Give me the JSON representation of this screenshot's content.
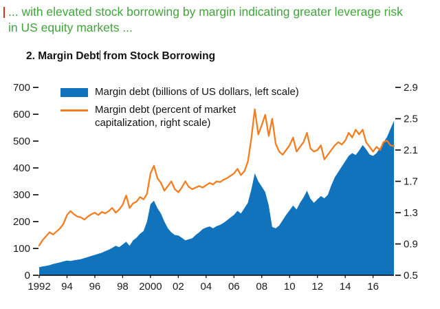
{
  "page": {
    "caption": "... with elevated stock borrowing by margin indicating greater leverage risk in US equity markets ...",
    "heading_part1": "2. Margin Debt",
    "heading_part2": "from Stock Borrowing"
  },
  "colors": {
    "caption_green": "#3fa53a",
    "area_blue": "#1173bc",
    "line_orange": "#f47d20",
    "axis_black": "#000000",
    "red_marker": "#e02b20"
  },
  "chart_data": {
    "type": "area",
    "title": "2. Margin Debt from Stock Borrowing",
    "xlabel": "",
    "ylabel_left": "Margin debt (billions of US dollars)",
    "ylabel_right": "Margin debt (percent of market capitalization)",
    "x_unit": "year",
    "x_start": 1992,
    "x_step": 0.25,
    "x_end": 2017.5,
    "grid": false,
    "legend_position": "top-left-inside",
    "series": [
      {
        "name": "Margin debt (billions of US dollars, left scale)",
        "type": "area",
        "axis": "left",
        "color": "#1173bc",
        "values": [
          30,
          33,
          35,
          38,
          42,
          45,
          48,
          52,
          55,
          53,
          56,
          58,
          60,
          64,
          68,
          72,
          76,
          80,
          84,
          90,
          95,
          102,
          110,
          105,
          115,
          125,
          110,
          130,
          140,
          155,
          165,
          200,
          265,
          278,
          250,
          230,
          200,
          175,
          160,
          150,
          148,
          140,
          130,
          134,
          138,
          150,
          160,
          172,
          178,
          182,
          175,
          183,
          188,
          195,
          205,
          215,
          225,
          240,
          230,
          250,
          270,
          320,
          380,
          350,
          330,
          310,
          260,
          180,
          175,
          185,
          205,
          225,
          242,
          260,
          245,
          270,
          290,
          315,
          285,
          270,
          283,
          295,
          287,
          300,
          335,
          365,
          385,
          405,
          425,
          445,
          455,
          448,
          465,
          485,
          470,
          450,
          445,
          455,
          475,
          495,
          515,
          545,
          575
        ]
      },
      {
        "name": "Margin debt (percent of market capitalization, right scale)",
        "type": "line",
        "axis": "right",
        "color": "#f47d20",
        "values": [
          0.88,
          0.95,
          1.0,
          1.05,
          1.02,
          1.06,
          1.1,
          1.16,
          1.27,
          1.32,
          1.28,
          1.25,
          1.24,
          1.21,
          1.25,
          1.28,
          1.3,
          1.27,
          1.31,
          1.29,
          1.32,
          1.36,
          1.3,
          1.34,
          1.4,
          1.52,
          1.36,
          1.42,
          1.44,
          1.5,
          1.47,
          1.54,
          1.8,
          1.9,
          1.74,
          1.68,
          1.58,
          1.64,
          1.7,
          1.6,
          1.56,
          1.62,
          1.7,
          1.63,
          1.6,
          1.62,
          1.64,
          1.62,
          1.65,
          1.68,
          1.66,
          1.7,
          1.69,
          1.72,
          1.74,
          1.77,
          1.8,
          1.86,
          1.78,
          1.83,
          1.95,
          2.25,
          2.62,
          2.3,
          2.42,
          2.55,
          2.28,
          2.5,
          2.18,
          2.08,
          2.04,
          2.1,
          2.16,
          2.26,
          2.08,
          2.14,
          2.2,
          2.32,
          2.12,
          2.08,
          2.1,
          2.16,
          1.98,
          2.04,
          2.1,
          2.16,
          2.2,
          2.17,
          2.22,
          2.32,
          2.26,
          2.36,
          2.3,
          2.36,
          2.2,
          2.14,
          2.08,
          2.14,
          2.1,
          2.2,
          2.22,
          2.16,
          2.15
        ]
      }
    ],
    "x_axis": {
      "ticks": [
        1992,
        1994,
        1996,
        1998,
        2000,
        2002,
        2004,
        2006,
        2008,
        2010,
        2012,
        2014,
        2016
      ],
      "tick_labels": [
        "1992",
        "94",
        "96",
        "98",
        "2000",
        "02",
        "04",
        "06",
        "08",
        "10",
        "12",
        "14",
        "16"
      ]
    },
    "y_left": {
      "range": [
        0,
        700
      ],
      "ticks": [
        0,
        100,
        200,
        300,
        400,
        500,
        600,
        700
      ],
      "tick_labels": [
        "0",
        "100",
        "200",
        "300",
        "400",
        "500",
        "600",
        "700"
      ]
    },
    "y_right": {
      "range": [
        0.5,
        2.9
      ],
      "ticks": [
        0.5,
        0.9,
        1.3,
        1.7,
        2.1,
        2.5,
        2.9
      ],
      "tick_labels": [
        "0.5",
        "0.9",
        "1.3",
        "1.7",
        "2.1",
        "2.5",
        "2.9"
      ]
    }
  }
}
